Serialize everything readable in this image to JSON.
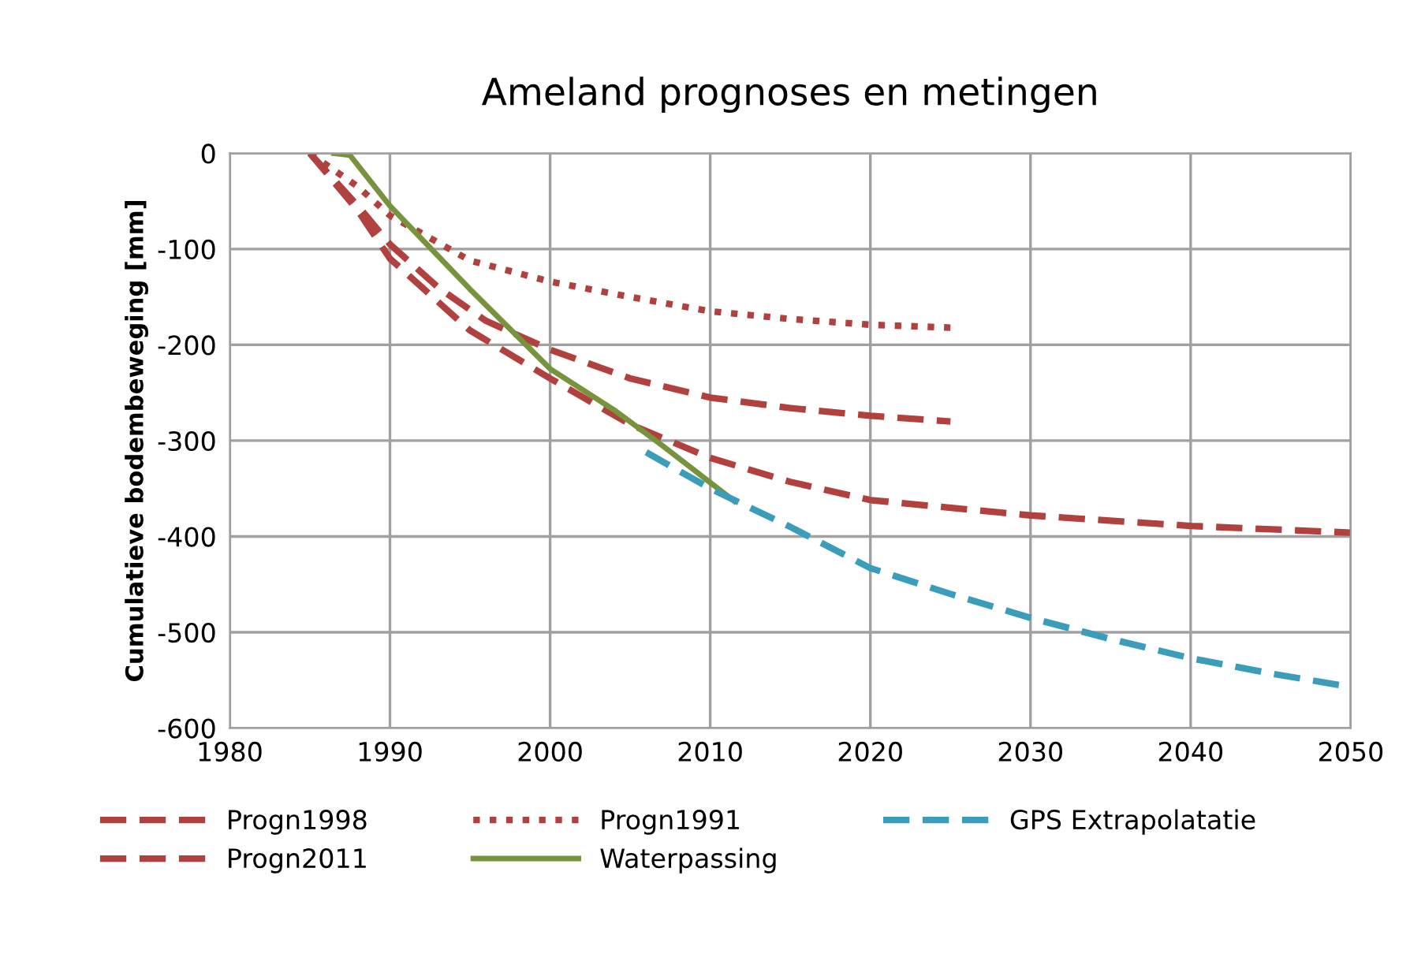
{
  "chart_data": {
    "type": "line",
    "title": "Ameland prognoses en metingen",
    "ylabel": "Cumulatieve bodembeweging [mm]",
    "xlim": [
      1980,
      2050
    ],
    "xticks": [
      1980,
      1990,
      2000,
      2010,
      2020,
      2030,
      2040,
      2050
    ],
    "ylim": [
      -600,
      0
    ],
    "yticks": [
      -600,
      -500,
      -400,
      -300,
      -200,
      -100,
      0
    ],
    "grid": true,
    "legend": "bottom",
    "marker": "none",
    "series": [
      {
        "name": "Progn1998",
        "color": "#b0413e",
        "line_style": "dashed",
        "x": [
          1985,
          1988,
          1990,
          1993,
          1996,
          2000,
          2005,
          2010,
          2015,
          2020,
          2025
        ],
        "values": [
          0,
          -55,
          -95,
          -140,
          -175,
          -205,
          -235,
          -255,
          -266,
          -274,
          -280
        ]
      },
      {
        "name": "Progn2011",
        "color": "#b0413e",
        "line_style": "dashed",
        "x": [
          1985,
          1988,
          1990,
          1995,
          2000,
          2005,
          2010,
          2015,
          2020,
          2030,
          2040,
          2050
        ],
        "values": [
          0,
          -60,
          -110,
          -185,
          -235,
          -283,
          -318,
          -343,
          -362,
          -378,
          -389,
          -396
        ]
      },
      {
        "name": "Progn1991",
        "color": "#b0413e",
        "line_style": "dotted",
        "x": [
          1985,
          1988,
          1990,
          1995,
          2000,
          2005,
          2010,
          2015,
          2020,
          2025
        ],
        "values": [
          0,
          -35,
          -65,
          -112,
          -134,
          -150,
          -165,
          -173,
          -179,
          -182
        ]
      },
      {
        "name": "Waterpassing",
        "color": "#77933c",
        "line_style": "solid",
        "x": [
          1986.5,
          1987.5,
          1990,
          1995,
          2000,
          2004,
          2007,
          2011.5
        ],
        "values": [
          0,
          -2,
          -55,
          -142,
          -225,
          -268,
          -305,
          -363
        ]
      },
      {
        "name": "GPS Extrapolatatie",
        "color": "#3c9dbb",
        "line_style": "dashed",
        "x": [
          2006,
          2010,
          2015,
          2020,
          2025,
          2030,
          2035,
          2040,
          2045,
          2050
        ],
        "values": [
          -312,
          -350,
          -390,
          -433,
          -460,
          -485,
          -507,
          -527,
          -543,
          -557
        ]
      }
    ]
  }
}
